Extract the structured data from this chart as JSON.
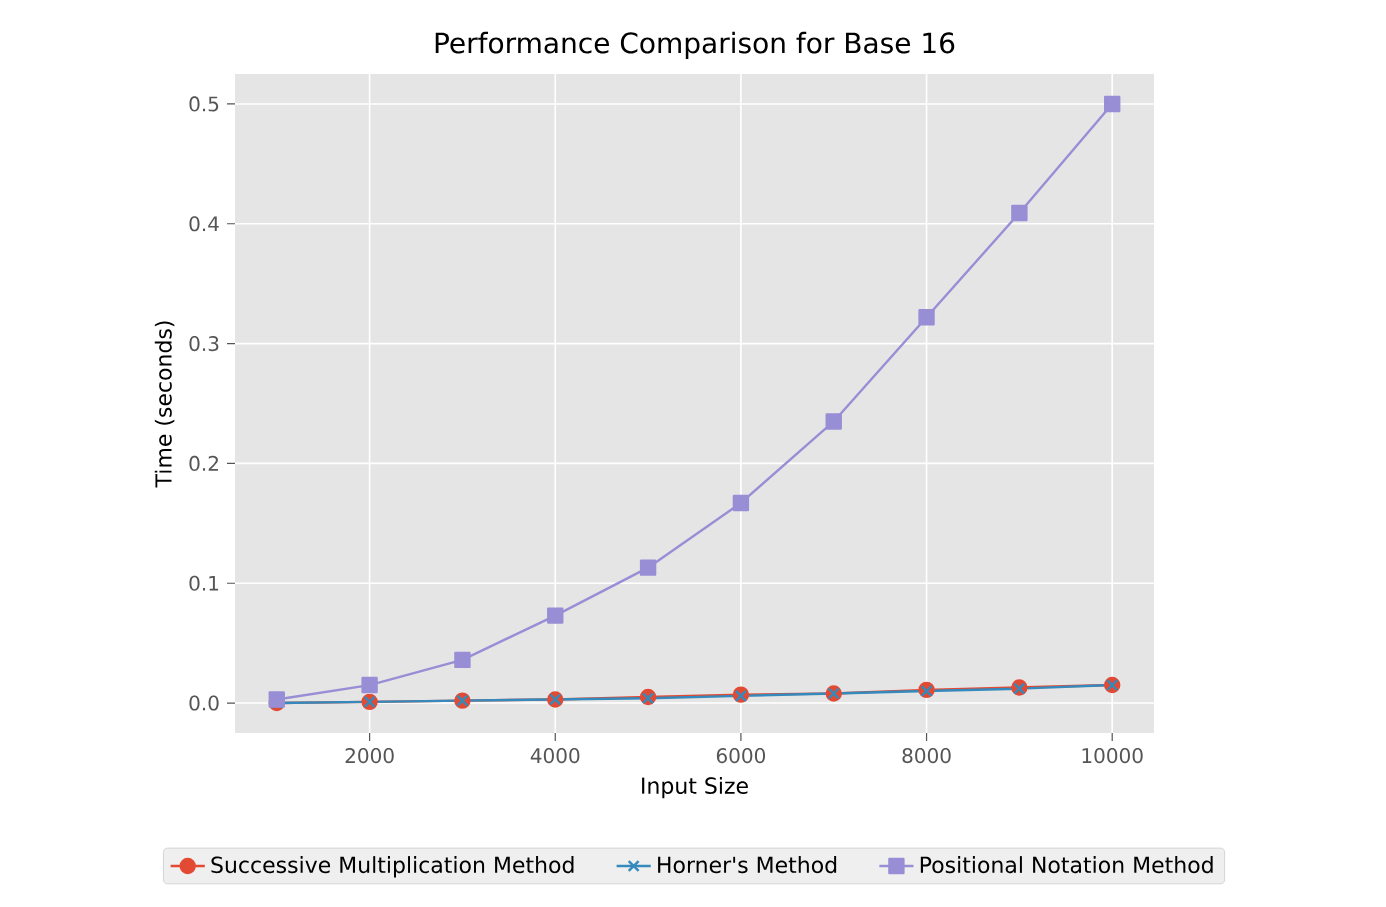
{
  "chart_data": {
    "type": "line",
    "title": "Performance Comparison for Base 16",
    "xlabel": "Input Size",
    "ylabel": "Time (seconds)",
    "x": [
      1000,
      2000,
      3000,
      4000,
      5000,
      6000,
      7000,
      8000,
      9000,
      10000
    ],
    "series": [
      {
        "name": "Successive Multiplication Method",
        "color": "#e24a33",
        "marker": "circle",
        "values": [
          0.0,
          0.001,
          0.002,
          0.003,
          0.005,
          0.007,
          0.008,
          0.011,
          0.013,
          0.015
        ]
      },
      {
        "name": "Horner's Method",
        "color": "#348abd",
        "marker": "cross",
        "values": [
          0.0,
          0.001,
          0.002,
          0.003,
          0.004,
          0.006,
          0.008,
          0.01,
          0.012,
          0.015
        ]
      },
      {
        "name": "Positional Notation Method",
        "color": "#988ed5",
        "marker": "square",
        "values": [
          0.003,
          0.015,
          0.036,
          0.073,
          0.113,
          0.167,
          0.235,
          0.322,
          0.409,
          0.5
        ]
      }
    ],
    "xlim": [
      550,
      10450
    ],
    "ylim": [
      -0.025,
      0.525
    ],
    "xticks": [
      2000,
      4000,
      6000,
      8000,
      10000
    ],
    "yticks": [
      {
        "value": 0,
        "label": "0.0"
      },
      0.1,
      0.2,
      0.3,
      0.4,
      0.5
    ],
    "grid": true,
    "legend": "bottom",
    "line_style": "solid"
  }
}
